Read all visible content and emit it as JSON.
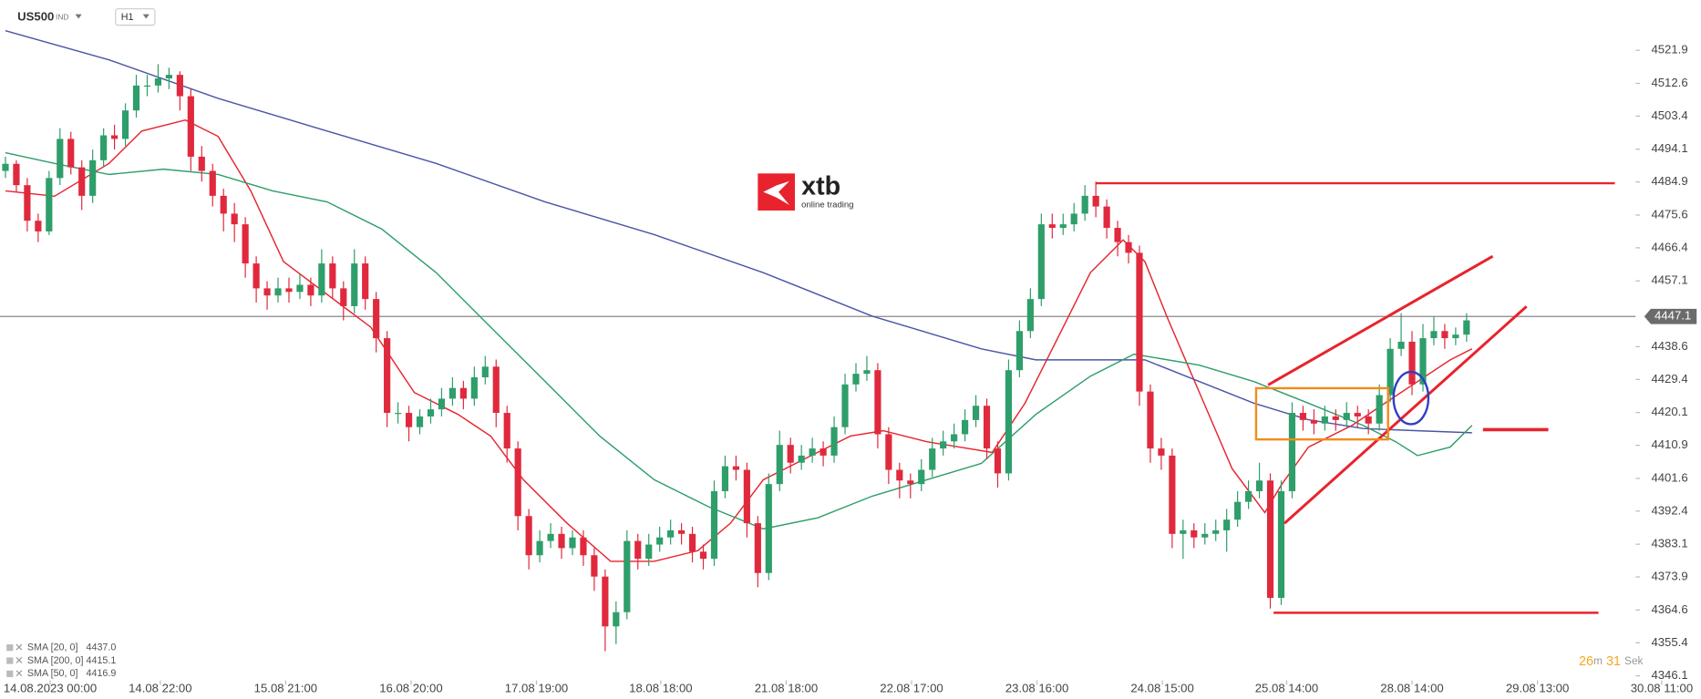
{
  "header": {
    "symbol": "US500",
    "market": "IND",
    "timeframe": "H1"
  },
  "logo": {
    "brand": "xtb",
    "tagline": "online trading"
  },
  "timer": {
    "minutes": 26,
    "minutes_unit": "m",
    "seconds": 31,
    "seconds_unit": "Sek"
  },
  "chart_data": {
    "type": "candlestick",
    "up_color": "#2e9e6a",
    "down_color": "#e0293d",
    "xlim": [
      -0.5,
      149.5
    ],
    "ylim": [
      4343.0,
      4536.0
    ],
    "xticks": [
      {
        "value": 4.1,
        "label": "14.08.2023  00:00"
      },
      {
        "value": 14.2,
        "label": "14.08  22:00"
      },
      {
        "value": 25.7,
        "label": "15.08  21:00"
      },
      {
        "value": 37.2,
        "label": "16.08  20:00"
      },
      {
        "value": 48.7,
        "label": "17.08  19:00"
      },
      {
        "value": 60.1,
        "label": "18.08  18:00"
      },
      {
        "value": 71.6,
        "label": "21.08  18:00"
      },
      {
        "value": 83.1,
        "label": "22.08  17:00"
      },
      {
        "value": 94.6,
        "label": "23.08  16:00"
      },
      {
        "value": 106.1,
        "label": "24.08  15:00"
      },
      {
        "value": 117.5,
        "label": "25.08  14:00"
      },
      {
        "value": 129.0,
        "label": "28.08  14:00"
      },
      {
        "value": 140.5,
        "label": "29.08  13:00"
      },
      {
        "value": 151.9,
        "label": "30.08  11:00"
      }
    ],
    "yticks": [
      4521.9,
      4512.6,
      4503.4,
      4494.1,
      4484.9,
      4475.6,
      4466.4,
      4457.1,
      4438.6,
      4429.4,
      4420.1,
      4410.9,
      4401.6,
      4392.4,
      4383.1,
      4373.9,
      4364.6,
      4355.4,
      4346.1
    ],
    "current_price": 4447.1,
    "candles": [
      [
        4488,
        4492,
        4486,
        4490
      ],
      [
        4490,
        4491,
        4482,
        4484
      ],
      [
        4484,
        4486,
        4471,
        4474
      ],
      [
        4474,
        4476,
        4468,
        4471
      ],
      [
        4471,
        4488,
        4470,
        4486
      ],
      [
        4486,
        4500,
        4484,
        4497
      ],
      [
        4497,
        4499,
        4487,
        4489
      ],
      [
        4489,
        4491,
        4477,
        4481
      ],
      [
        4481,
        4494,
        4479,
        4491
      ],
      [
        4491,
        4500,
        4489,
        4498
      ],
      [
        4498,
        4501,
        4494,
        4497
      ],
      [
        4497,
        4507,
        4495,
        4505
      ],
      [
        4505,
        4515,
        4503,
        4512
      ],
      [
        4512,
        4515,
        4509,
        4512
      ],
      [
        4512,
        4518,
        4510,
        4514
      ],
      [
        4514,
        4517,
        4511,
        4515
      ],
      [
        4515,
        4516,
        4505,
        4509
      ],
      [
        4509,
        4511,
        4488,
        4492
      ],
      [
        4492,
        4495,
        4485,
        4488
      ],
      [
        4488,
        4490,
        4478,
        4481
      ],
      [
        4481,
        4483,
        4471,
        4476
      ],
      [
        4476,
        4479,
        4468,
        4473
      ],
      [
        4473,
        4475,
        4458,
        4462
      ],
      [
        4462,
        4464,
        4451,
        4455
      ],
      [
        4455,
        4457,
        4449,
        4453
      ],
      [
        4453,
        4458,
        4451,
        4455
      ],
      [
        4455,
        4458,
        4451,
        4454
      ],
      [
        4454,
        4459,
        4452,
        4456
      ],
      [
        4456,
        4458,
        4450,
        4453
      ],
      [
        4453,
        4466,
        4451,
        4462
      ],
      [
        4462,
        4464,
        4452,
        4455
      ],
      [
        4455,
        4457,
        4446,
        4450
      ],
      [
        4450,
        4466,
        4448,
        4462
      ],
      [
        4462,
        4464,
        4449,
        4452
      ],
      [
        4452,
        4454,
        4437,
        4441
      ],
      [
        4441,
        4443,
        4416,
        4420
      ],
      [
        4420,
        4423,
        4417,
        4420
      ],
      [
        4420,
        4422,
        4412,
        4416
      ],
      [
        4416,
        4421,
        4414,
        4419
      ],
      [
        4419,
        4424,
        4417,
        4421
      ],
      [
        4421,
        4427,
        4419,
        4424
      ],
      [
        4424,
        4430,
        4422,
        4427
      ],
      [
        4427,
        4429,
        4421,
        4424
      ],
      [
        4424,
        4433,
        4422,
        4430
      ],
      [
        4430,
        4436,
        4428,
        4433
      ],
      [
        4433,
        4435,
        4416,
        4420
      ],
      [
        4420,
        4422,
        4406,
        4410
      ],
      [
        4410,
        4412,
        4387,
        4391
      ],
      [
        4391,
        4393,
        4376,
        4380
      ],
      [
        4380,
        4387,
        4378,
        4384
      ],
      [
        4384,
        4389,
        4382,
        4386
      ],
      [
        4386,
        4388,
        4379,
        4382
      ],
      [
        4382,
        4387,
        4380,
        4385
      ],
      [
        4385,
        4387,
        4377,
        4380
      ],
      [
        4380,
        4382,
        4370,
        4374
      ],
      [
        4374,
        4376,
        4353,
        4360
      ],
      [
        4360,
        4367,
        4355,
        4364
      ],
      [
        4364,
        4387,
        4362,
        4384
      ],
      [
        4384,
        4386,
        4376,
        4379
      ],
      [
        4379,
        4386,
        4377,
        4383
      ],
      [
        4383,
        4388,
        4381,
        4385
      ],
      [
        4385,
        4390,
        4383,
        4387
      ],
      [
        4387,
        4389,
        4383,
        4386
      ],
      [
        4386,
        4388,
        4378,
        4381
      ],
      [
        4381,
        4383,
        4376,
        4379
      ],
      [
        4379,
        4401,
        4377,
        4398
      ],
      [
        4398,
        4408,
        4396,
        4405
      ],
      [
        4405,
        4408,
        4401,
        4404
      ],
      [
        4404,
        4406,
        4385,
        4389
      ],
      [
        4389,
        4391,
        4371,
        4375
      ],
      [
        4375,
        4403,
        4373,
        4400
      ],
      [
        4400,
        4415,
        4398,
        4411
      ],
      [
        4411,
        4413,
        4403,
        4406
      ],
      [
        4406,
        4411,
        4404,
        4408
      ],
      [
        4408,
        4413,
        4406,
        4410
      ],
      [
        4410,
        4412,
        4405,
        4408
      ],
      [
        4408,
        4419,
        4406,
        4416
      ],
      [
        4416,
        4431,
        4414,
        4428
      ],
      [
        4428,
        4434,
        4426,
        4431
      ],
      [
        4431,
        4436,
        4429,
        4432
      ],
      [
        4432,
        4434,
        4410,
        4414
      ],
      [
        4414,
        4416,
        4400,
        4404
      ],
      [
        4404,
        4406,
        4396,
        4401
      ],
      [
        4401,
        4403,
        4396,
        4400
      ],
      [
        4400,
        4407,
        4398,
        4404
      ],
      [
        4404,
        4413,
        4402,
        4410
      ],
      [
        4410,
        4415,
        4408,
        4412
      ],
      [
        4412,
        4417,
        4410,
        4414
      ],
      [
        4414,
        4421,
        4412,
        4418
      ],
      [
        4418,
        4425,
        4416,
        4422
      ],
      [
        4422,
        4424,
        4407,
        4410
      ],
      [
        4410,
        4412,
        4399,
        4403
      ],
      [
        4403,
        4435,
        4401,
        4432
      ],
      [
        4432,
        4446,
        4430,
        4443
      ],
      [
        4443,
        4455,
        4441,
        4452
      ],
      [
        4452,
        4476,
        4450,
        4473
      ],
      [
        4473,
        4476,
        4469,
        4472
      ],
      [
        4472,
        4476,
        4470,
        4473
      ],
      [
        4473,
        4479,
        4471,
        4476
      ],
      [
        4476,
        4484,
        4474,
        4481
      ],
      [
        4481,
        4485,
        4475,
        4478
      ],
      [
        4478,
        4480,
        4469,
        4472
      ],
      [
        4472,
        4474,
        4464,
        4468
      ],
      [
        4468,
        4470,
        4462,
        4465
      ],
      [
        4465,
        4467,
        4422,
        4426
      ],
      [
        4426,
        4428,
        4406,
        4410
      ],
      [
        4410,
        4413,
        4404,
        4408
      ],
      [
        4408,
        4410,
        4382,
        4386
      ],
      [
        4386,
        4390,
        4379,
        4387
      ],
      [
        4387,
        4389,
        4382,
        4385
      ],
      [
        4385,
        4389,
        4383,
        4386
      ],
      [
        4386,
        4390,
        4384,
        4387
      ],
      [
        4387,
        4393,
        4381,
        4390
      ],
      [
        4390,
        4398,
        4388,
        4395
      ],
      [
        4395,
        4401,
        4393,
        4398
      ],
      [
        4398,
        4406,
        4396,
        4401
      ],
      [
        4401,
        4403,
        4365,
        4368
      ],
      [
        4368,
        4401,
        4366,
        4398
      ],
      [
        4398,
        4423,
        4396,
        4420
      ],
      [
        4420,
        4422,
        4415,
        4418
      ],
      [
        4418,
        4421,
        4414,
        4417
      ],
      [
        4417,
        4422,
        4415,
        4419
      ],
      [
        4419,
        4421,
        4415,
        4418
      ],
      [
        4418,
        4423,
        4416,
        4420
      ],
      [
        4420,
        4422,
        4416,
        4419
      ],
      [
        4419,
        4421,
        4414,
        4417
      ],
      [
        4417,
        4428,
        4415,
        4425
      ],
      [
        4425,
        4441,
        4423,
        4438
      ],
      [
        4438,
        4448,
        4436,
        4440
      ],
      [
        4440,
        4443,
        4425,
        4428
      ],
      [
        4428,
        4445,
        4426,
        4441
      ],
      [
        4441,
        4447,
        4439,
        4443
      ],
      [
        4443,
        4445,
        4438,
        4441
      ],
      [
        4441,
        4444,
        4439,
        4442
      ],
      [
        4442,
        4448,
        4440,
        4446
      ]
    ],
    "series": [
      {
        "name": "SMA [20, 0]",
        "legend_value": "4437.0",
        "color": "#e8232d",
        "x": [
          0,
          4.5,
          9.5,
          12.5,
          16.5,
          19.5,
          22.5,
          25.5,
          29.5,
          33.5,
          37.5,
          41.5,
          44.5,
          47.5,
          51.5,
          55.5,
          59.5,
          63.5,
          66.5,
          69.5,
          73.5,
          77.5,
          80.5,
          84.5,
          87.5,
          90.5,
          93.5,
          96.5,
          99.5,
          102.5,
          104.5,
          106.5,
          109.5,
          112.5,
          115.5,
          117,
          119.5,
          123.5,
          126.5,
          129.5,
          132.5,
          134.5
        ],
        "values": [
          4482.4,
          4480.9,
          4490.1,
          4499.2,
          4502.3,
          4497.7,
          4482.4,
          4462.5,
          4453.3,
          4444.1,
          4425.7,
          4419.6,
          4413.5,
          4401.2,
          4389.0,
          4378.3,
          4378.3,
          4381.3,
          4389.0,
          4401.2,
          4407.4,
          4413.5,
          4415.0,
          4411.9,
          4410.4,
          4408.9,
          4422.7,
          4441.0,
          4459.4,
          4468.6,
          4462.5,
          4447.2,
          4425.7,
          4404.3,
          4392.0,
          4399.7,
          4410.4,
          4416.5,
          4422.7,
          4428.8,
          4434.9,
          4438.0
        ]
      },
      {
        "name": "SMA [200, 0]",
        "legend_value": "4415.1",
        "color": "#4a56a8",
        "x": [
          0,
          9.5,
          19.5,
          29.5,
          39.5,
          49.5,
          59.5,
          69.5,
          79.5,
          89.5,
          94.5,
          99.5,
          104.5,
          109.5,
          114.5,
          119.5,
          124.5,
          129.5,
          134.5
        ],
        "values": [
          4527.4,
          4519.2,
          4508.4,
          4499.2,
          4490.1,
          4479.3,
          4470.1,
          4459.4,
          4447.2,
          4438.0,
          4434.9,
          4434.9,
          4434.9,
          4428.8,
          4422.7,
          4418.1,
          4415.6,
          4415.0,
          4414.4
        ]
      },
      {
        "name": "SMA [50, 0]",
        "legend_value": "4416.9",
        "color": "#2e9e6a",
        "x": [
          0,
          4.5,
          9.5,
          14.5,
          19.5,
          24.5,
          29.5,
          34.5,
          39.5,
          44.5,
          49.5,
          54.5,
          59.5,
          64.5,
          69.5,
          74.5,
          79.5,
          84.5,
          89.5,
          94.5,
          99.5,
          103.5,
          109.5,
          114.5,
          119.5,
          124.5,
          127.5,
          129.5,
          132.5,
          134.5
        ],
        "values": [
          4493.1,
          4490.1,
          4487.0,
          4488.5,
          4487.0,
          4482.4,
          4479.3,
          4471.7,
          4459.4,
          4444.1,
          4428.8,
          4413.5,
          4401.2,
          4393.6,
          4387.4,
          4390.5,
          4396.6,
          4401.2,
          4405.8,
          4419.6,
          4430.3,
          4436.5,
          4433.4,
          4428.8,
          4422.7,
          4416.5,
          4411.9,
          4408.0,
          4410.4,
          4416.5
        ]
      }
    ]
  }
}
